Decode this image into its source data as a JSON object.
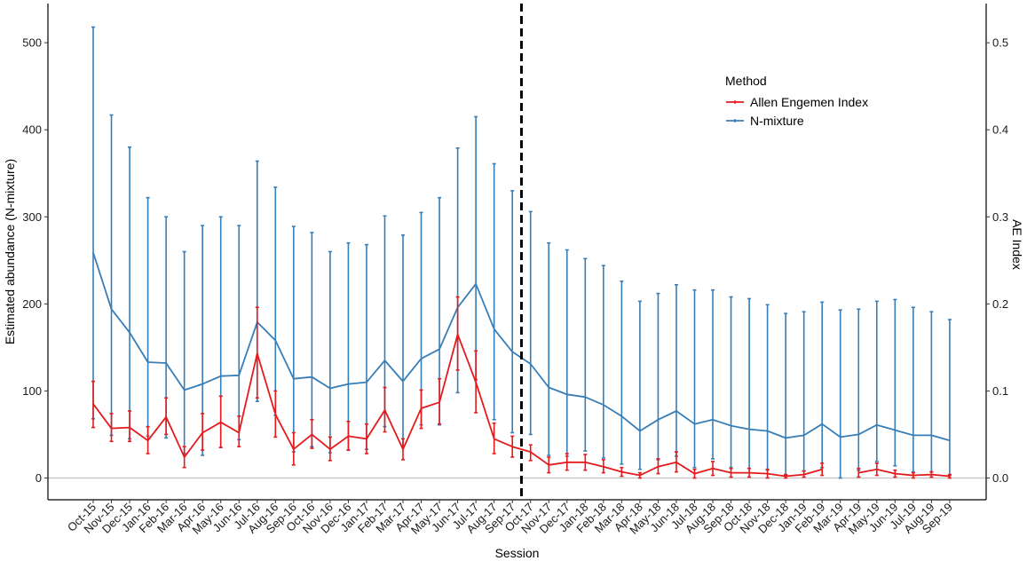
{
  "chart_data": {
    "type": "line",
    "xlabel": "Session",
    "ylabel_left": "Estimated abundance (N-mixture)",
    "ylabel_right": "AE Index",
    "ylim_left": [
      -25,
      545
    ],
    "ylim_right": [
      -0.025,
      0.545
    ],
    "yticks_left": [
      "0",
      "100",
      "200",
      "300",
      "400",
      "500"
    ],
    "yticks_right": [
      "0.0",
      "0.1",
      "0.2",
      "0.3",
      "0.4",
      "0.5"
    ],
    "legend": {
      "title": "Method",
      "position": "top-right"
    },
    "reference_line": {
      "at_category": "Oct-17",
      "style": "dashed"
    },
    "zero_line": true,
    "categories": [
      "Oct-15",
      "Nov-15",
      "Dec-15",
      "Jan-16",
      "Feb-16",
      "Mar-16",
      "Apr-16",
      "May-16",
      "Jun-16",
      "Jul-16",
      "Aug-16",
      "Sep-16",
      "Oct-16",
      "Nov-16",
      "Dec-16",
      "Jan-17",
      "Feb-17",
      "Mar-17",
      "Apr-17",
      "May-17",
      "Jun-17",
      "Jul-17",
      "Aug-17",
      "Sep-17",
      "Oct-17",
      "Nov-17",
      "Dec-17",
      "Jan-18",
      "Feb-18",
      "Mar-18",
      "Apr-18",
      "May-18",
      "Jun-18",
      "Jul-18",
      "Aug-18",
      "Sep-18",
      "Oct-18",
      "Nov-18",
      "Dec-18",
      "Jan-19",
      "Feb-19",
      "Mar-19",
      "Apr-19",
      "May-19",
      "Jun-19",
      "Jul-19",
      "Aug-19",
      "Sep-19"
    ],
    "series": [
      {
        "name": "Allen Engemen Index",
        "color": "#e41a1c",
        "axis": "right",
        "values": [
          0.085,
          0.057,
          0.058,
          0.043,
          0.07,
          0.024,
          0.052,
          0.064,
          0.052,
          0.143,
          0.073,
          0.033,
          0.05,
          0.033,
          0.048,
          0.045,
          0.078,
          0.033,
          0.08,
          0.087,
          0.165,
          0.11,
          0.045,
          0.036,
          0.03,
          0.015,
          0.018,
          0.018,
          0.013,
          0.007,
          0.003,
          0.013,
          0.018,
          0.005,
          0.011,
          0.006,
          0.006,
          0.005,
          0.002,
          0.004,
          0.01,
          null,
          0.006,
          0.01,
          0.005,
          0.003,
          0.004,
          0.002
        ],
        "lower": [
          0.058,
          0.042,
          0.042,
          0.028,
          0.05,
          0.012,
          0.032,
          0.035,
          0.036,
          0.092,
          0.047,
          0.015,
          0.034,
          0.02,
          0.032,
          0.028,
          0.053,
          0.021,
          0.057,
          0.062,
          0.124,
          0.075,
          0.028,
          0.024,
          0.02,
          0.006,
          0.009,
          0.009,
          0.006,
          0.002,
          0.0,
          0.005,
          0.007,
          0.0,
          0.003,
          0.001,
          0.001,
          0.0,
          0.0,
          0.001,
          0.003,
          null,
          0.001,
          0.003,
          0.001,
          0.0,
          0.001,
          0.0
        ],
        "upper": [
          0.111,
          0.074,
          0.077,
          0.059,
          0.092,
          0.036,
          0.074,
          0.094,
          0.071,
          0.196,
          0.1,
          0.052,
          0.067,
          0.047,
          0.065,
          0.062,
          0.104,
          0.045,
          0.101,
          0.114,
          0.208,
          0.146,
          0.063,
          0.048,
          0.038,
          0.024,
          0.028,
          0.027,
          0.021,
          0.012,
          0.006,
          0.022,
          0.03,
          0.01,
          0.019,
          0.011,
          0.011,
          0.01,
          0.004,
          0.008,
          0.017,
          null,
          0.011,
          0.017,
          0.009,
          0.006,
          0.007,
          0.004
        ]
      },
      {
        "name": "N-mixture",
        "color": "#377eb8",
        "axis": "left",
        "values": [
          259,
          194,
          167,
          133,
          132,
          101,
          108,
          117,
          118,
          179,
          158,
          114,
          116,
          103,
          108,
          110,
          135,
          111,
          137,
          148,
          196,
          223,
          171,
          145,
          131,
          104,
          96,
          93,
          84,
          71,
          54,
          67,
          77,
          62,
          67,
          60,
          56,
          54,
          46,
          49,
          62,
          47,
          50,
          61,
          55,
          49,
          49,
          43
        ],
        "lower": [
          68,
          49,
          45,
          48,
          46,
          28,
          26,
          35,
          44,
          88,
          72,
          30,
          36,
          29,
          32,
          33,
          59,
          37,
          61,
          61,
          98,
          113,
          67,
          52,
          50,
          26,
          25,
          31,
          23,
          16,
          10,
          21,
          25,
          12,
          22,
          12,
          11,
          9,
          3,
          8,
          12,
          0,
          9,
          19,
          14,
          7,
          7,
          3
        ],
        "upper": [
          518,
          417,
          380,
          322,
          300,
          260,
          290,
          300,
          290,
          364,
          334,
          289,
          282,
          260,
          270,
          268,
          301,
          279,
          305,
          322,
          379,
          415,
          361,
          330,
          306,
          270,
          262,
          252,
          244,
          226,
          203,
          212,
          222,
          216,
          216,
          208,
          206,
          199,
          189,
          191,
          202,
          193,
          194,
          203,
          205,
          196,
          191,
          182
        ]
      }
    ]
  }
}
